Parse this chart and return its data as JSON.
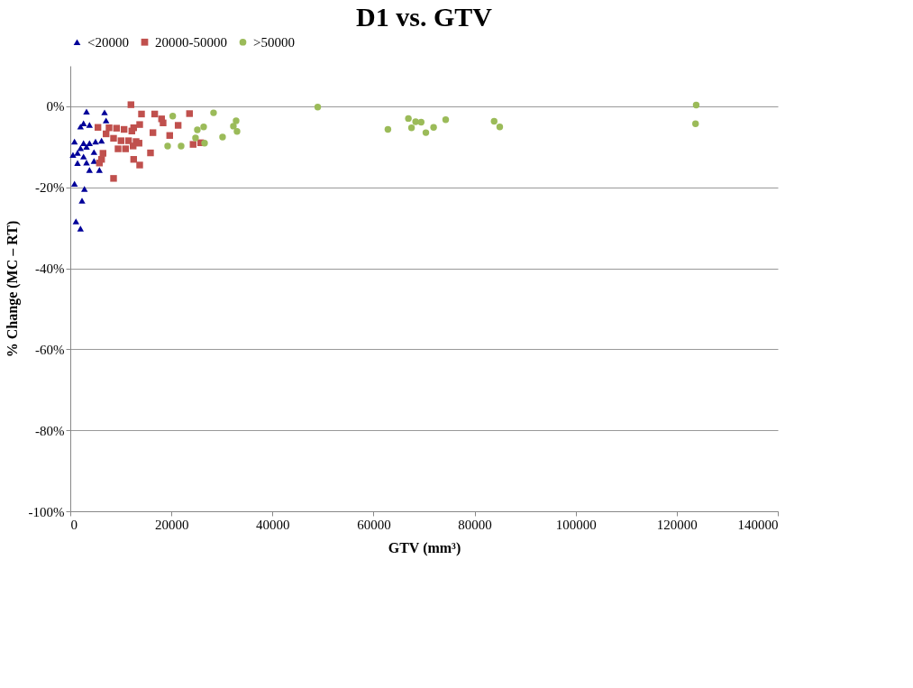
{
  "chart_data": {
    "type": "scatter",
    "title": "D1 vs. GTV",
    "xlabel": "GTV (mm³)",
    "ylabel": "% Change (MC – RT)",
    "xlim": [
      0,
      140000
    ],
    "xticks": [
      0,
      20000,
      40000,
      60000,
      80000,
      100000,
      120000,
      140000
    ],
    "ylim": [
      -100,
      10
    ],
    "yticks": [
      {
        "value": -100,
        "label": "-100%"
      },
      {
        "value": -80,
        "label": "-80%"
      },
      {
        "value": -60,
        "label": "-60%"
      },
      {
        "value": -40,
        "label": "-40%"
      },
      {
        "value": -20,
        "label": "-20%"
      },
      {
        "value": 0,
        "label": "0%"
      }
    ],
    "grid": "y",
    "legend": "top",
    "series": [
      {
        "name": "<20000",
        "color": "#000099",
        "marker": "triangle",
        "x": [
          3210,
          6780,
          7080,
          2620,
          3800,
          2020,
          830,
          2620,
          3800,
          4990,
          6180,
          2020,
          3210,
          530,
          1430,
          2620,
          4690,
          1430,
          3800,
          5760,
          3210,
          4690,
          830,
          2800,
          2320,
          1120,
          2020
        ],
        "values": [
          -1.3,
          -1.5,
          -3.5,
          -4.2,
          -4.6,
          -5.0,
          -8.7,
          -9.1,
          -9.1,
          -8.7,
          -8.5,
          -10.3,
          -10.0,
          -12.0,
          -11.5,
          -12.4,
          -11.3,
          -14.0,
          -15.7,
          -15.7,
          -13.9,
          -13.5,
          -19.1,
          -20.4,
          -23.3,
          -28.4,
          -30.2
        ]
      },
      {
        "name": "20000-50000",
        "color": "#c0504d",
        "marker": "square",
        "x": [
          12000,
          14090,
          16700,
          23590,
          18060,
          18360,
          21340,
          13730,
          12540,
          12180,
          16350,
          19670,
          5470,
          7670,
          9150,
          10640,
          7080,
          8560,
          10040,
          11530,
          13020,
          13600,
          24300,
          25800,
          9450,
          10930,
          12430,
          15870,
          6470,
          6190,
          12540,
          13730,
          5760,
          8560
        ],
        "values": [
          0.4,
          -1.9,
          -1.9,
          -1.8,
          -3.1,
          -4.1,
          -4.7,
          -4.5,
          -5.3,
          -6.1,
          -6.5,
          -7.2,
          -5.2,
          -5.3,
          -5.4,
          -5.7,
          -6.8,
          -7.9,
          -8.5,
          -8.5,
          -8.7,
          -9.1,
          -9.4,
          -9.0,
          -10.5,
          -10.5,
          -9.8,
          -11.5,
          -11.6,
          -13.1,
          -13.1,
          -14.5,
          -14.0,
          -17.8
        ]
      },
      {
        "name": ">50000",
        "color": "#9bbb59",
        "marker": "circle",
        "x": [
          20270,
          28350,
          25140,
          26390,
          24780,
          26570,
          19260,
          21930,
          30130,
          32810,
          32270,
          32990,
          48960,
          62850,
          66900,
          68330,
          69430,
          67520,
          70360,
          71890,
          74280,
          83870,
          84980,
          123850,
          123720
        ],
        "values": [
          -2.4,
          -1.6,
          -5.8,
          -5.1,
          -7.8,
          -9.1,
          -9.8,
          -9.8,
          -7.6,
          -3.6,
          -4.9,
          -6.2,
          -0.2,
          -5.7,
          -3.0,
          -3.8,
          -3.9,
          -5.3,
          -6.5,
          -5.2,
          -3.3,
          -3.7,
          -5.1,
          0.3,
          -4.3
        ]
      }
    ]
  }
}
